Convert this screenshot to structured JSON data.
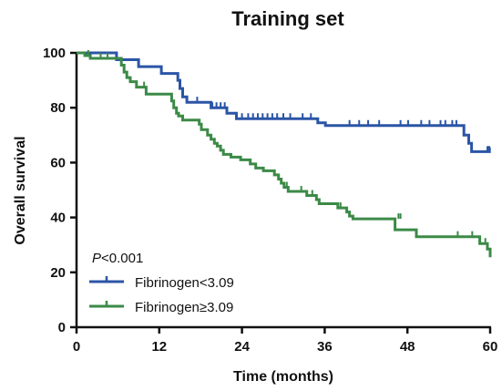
{
  "chart_data": {
    "type": "line",
    "title": "Training set",
    "xlabel": "Time (months)",
    "ylabel": "Overall survival",
    "xlim": [
      0,
      60
    ],
    "ylim": [
      0,
      100
    ],
    "xticks": [
      "0",
      "12",
      "24",
      "36",
      "48",
      "60"
    ],
    "yticks": [
      "0",
      "20",
      "40",
      "60",
      "80",
      "100"
    ],
    "grid": false,
    "legend_placement": "bottom-left",
    "annotation": {
      "italic": "P",
      "rest": "<0.001"
    },
    "series": [
      {
        "name": "Fibrinogen<3.09",
        "color": "#2b55a6",
        "steps": [
          [
            0,
            100
          ],
          [
            5.8,
            100
          ],
          [
            5.8,
            97.5
          ],
          [
            9,
            97.5
          ],
          [
            9,
            95
          ],
          [
            12.3,
            95
          ],
          [
            12.3,
            92.5
          ],
          [
            14.7,
            92.5
          ],
          [
            14.7,
            90
          ],
          [
            15,
            90
          ],
          [
            15,
            87
          ],
          [
            15.4,
            87
          ],
          [
            15.4,
            84
          ],
          [
            16,
            84
          ],
          [
            16,
            82
          ],
          [
            19.5,
            82
          ],
          [
            19.5,
            80
          ],
          [
            21.8,
            80
          ],
          [
            21.8,
            78
          ],
          [
            23.2,
            78
          ],
          [
            23.2,
            76
          ],
          [
            35,
            76
          ],
          [
            35,
            74.5
          ],
          [
            36.1,
            74.5
          ],
          [
            36.1,
            73.5
          ],
          [
            56.2,
            73.5
          ],
          [
            56.2,
            70
          ],
          [
            56.9,
            70
          ],
          [
            56.9,
            67
          ],
          [
            57.3,
            67
          ],
          [
            57.3,
            64
          ],
          [
            59.9,
            64
          ],
          [
            59.9,
            65.5
          ],
          [
            60,
            65.5
          ]
        ],
        "censor": [
          [
            17.5,
            82
          ],
          [
            19.7,
            80
          ],
          [
            20.3,
            80
          ],
          [
            20.9,
            80
          ],
          [
            21.5,
            80
          ],
          [
            24,
            76
          ],
          [
            24.9,
            76
          ],
          [
            25.6,
            76
          ],
          [
            26.3,
            76
          ],
          [
            27,
            76
          ],
          [
            27.7,
            76
          ],
          [
            28.4,
            76
          ],
          [
            29.1,
            76
          ],
          [
            30,
            76
          ],
          [
            31,
            76
          ],
          [
            32.8,
            76
          ],
          [
            34,
            76
          ],
          [
            39.6,
            73.5
          ],
          [
            41,
            73.5
          ],
          [
            42.3,
            73.5
          ],
          [
            43.9,
            73.5
          ],
          [
            47,
            73.5
          ],
          [
            48.1,
            73.5
          ],
          [
            50,
            73.5
          ],
          [
            51.2,
            73.5
          ],
          [
            52.8,
            73.5
          ],
          [
            53.5,
            73.5
          ],
          [
            54.5,
            73.5
          ],
          [
            55.1,
            73.5
          ],
          [
            59.6,
            64
          ]
        ]
      },
      {
        "name": "Fibrinogen≥3.09",
        "color": "#3b8a47",
        "steps": [
          [
            0,
            100
          ],
          [
            1.2,
            100
          ],
          [
            1.2,
            99
          ],
          [
            2,
            99
          ],
          [
            2,
            98
          ],
          [
            6.5,
            98
          ],
          [
            6.5,
            95.5
          ],
          [
            6.9,
            95.5
          ],
          [
            6.9,
            93
          ],
          [
            7.3,
            93
          ],
          [
            7.3,
            91
          ],
          [
            7.8,
            91
          ],
          [
            7.8,
            89.5
          ],
          [
            8.7,
            89.5
          ],
          [
            8.7,
            87.5
          ],
          [
            10.1,
            87.5
          ],
          [
            10.1,
            85
          ],
          [
            13.8,
            85
          ],
          [
            13.8,
            82.5
          ],
          [
            14.1,
            82.5
          ],
          [
            14.1,
            80
          ],
          [
            14.5,
            80
          ],
          [
            14.5,
            78
          ],
          [
            14.8,
            78
          ],
          [
            14.8,
            77
          ],
          [
            15.4,
            77
          ],
          [
            15.4,
            75.5
          ],
          [
            17.8,
            75.5
          ],
          [
            17.8,
            74
          ],
          [
            18.1,
            74
          ],
          [
            18.1,
            72
          ],
          [
            19,
            72
          ],
          [
            19,
            70
          ],
          [
            19.5,
            70
          ],
          [
            19.5,
            68.5
          ],
          [
            20,
            68.5
          ],
          [
            20,
            67
          ],
          [
            20.4,
            67
          ],
          [
            20.4,
            66
          ],
          [
            20.9,
            66
          ],
          [
            20.9,
            64.5
          ],
          [
            21.3,
            64.5
          ],
          [
            21.3,
            63
          ],
          [
            22.4,
            63
          ],
          [
            22.4,
            62
          ],
          [
            23.8,
            62
          ],
          [
            23.8,
            61
          ],
          [
            25.2,
            61
          ],
          [
            25.2,
            59.5
          ],
          [
            26,
            59.5
          ],
          [
            26,
            58
          ],
          [
            27.1,
            58
          ],
          [
            27.1,
            57
          ],
          [
            28.7,
            57
          ],
          [
            28.7,
            55.5
          ],
          [
            29.3,
            55.5
          ],
          [
            29.3,
            54
          ],
          [
            29.7,
            54
          ],
          [
            29.7,
            52.5
          ],
          [
            30.1,
            52.5
          ],
          [
            30.1,
            51
          ],
          [
            30.7,
            51
          ],
          [
            30.7,
            49.5
          ],
          [
            33.4,
            49.5
          ],
          [
            33.4,
            48
          ],
          [
            34.8,
            48
          ],
          [
            34.8,
            46.5
          ],
          [
            35.2,
            46.5
          ],
          [
            35.2,
            45
          ],
          [
            37.9,
            45
          ],
          [
            37.9,
            43.5
          ],
          [
            39.2,
            43.5
          ],
          [
            39.2,
            42
          ],
          [
            39.6,
            42
          ],
          [
            39.6,
            40.5
          ],
          [
            40.1,
            40.5
          ],
          [
            40.1,
            39.5
          ],
          [
            46.2,
            39.5
          ],
          [
            46.2,
            35.5
          ],
          [
            49.3,
            35.5
          ],
          [
            49.3,
            33
          ],
          [
            58.5,
            33
          ],
          [
            58.5,
            30.5
          ],
          [
            59.6,
            30.5
          ],
          [
            59.6,
            28.5
          ],
          [
            60,
            28.5
          ],
          [
            60,
            25.5
          ]
        ],
        "censor": [
          [
            1.7,
            99
          ],
          [
            3.5,
            98
          ],
          [
            4.5,
            98
          ],
          [
            9.8,
            87.5
          ],
          [
            30.5,
            51
          ],
          [
            32.6,
            49.5
          ],
          [
            34.2,
            48
          ],
          [
            38.3,
            43.5
          ],
          [
            46.7,
            39.5
          ],
          [
            47,
            39.5
          ],
          [
            55.3,
            33
          ],
          [
            57.4,
            33
          ],
          [
            59.3,
            30.5
          ]
        ]
      }
    ]
  }
}
